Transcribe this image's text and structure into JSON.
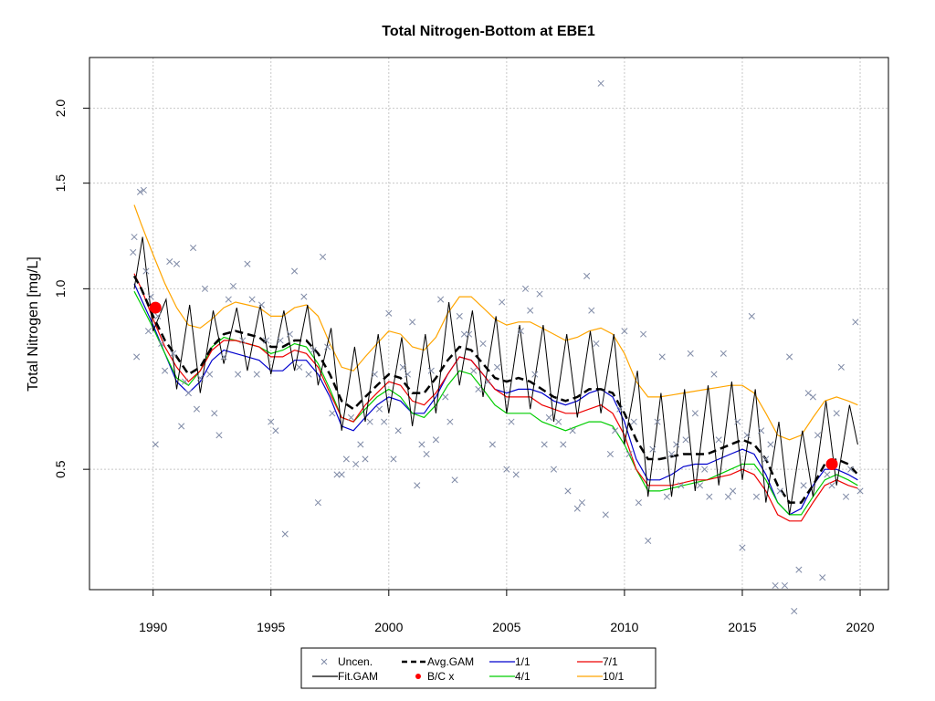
{
  "chart_data": {
    "type": "line",
    "title": "Total Nitrogen-Bottom at EBE1",
    "ylabel": "Total Nitrogen [mg/L]",
    "xlabel": "",
    "x_range": [
      1987.3,
      2021.2
    ],
    "y_range": [
      0.315,
      2.43
    ],
    "y_scale": "log",
    "x_ticks": [
      1990,
      1995,
      2000,
      2005,
      2010,
      2015,
      2020
    ],
    "y_ticks": [
      0.5,
      1.0,
      1.5,
      2.0
    ],
    "y_tick_labels": [
      "0.5",
      "1.0",
      "1.5",
      "2.0"
    ],
    "grid": true,
    "legend_position": "bottom",
    "legend": [
      {
        "label": "Uncen.",
        "kind": "cross",
        "color": "#7f8aa6"
      },
      {
        "label": "Fit.GAM",
        "kind": "line",
        "color": "#000000"
      },
      {
        "label": "Avg.GAM",
        "kind": "dashed",
        "color": "#000000"
      },
      {
        "label": "B/C x",
        "kind": "dot",
        "color": "#ff0000"
      },
      {
        "label": "1/1",
        "kind": "line",
        "color": "#0000cd"
      },
      {
        "label": "4/1",
        "kind": "line",
        "color": "#00cd00"
      },
      {
        "label": "7/1",
        "kind": "line",
        "color": "#ee0000"
      },
      {
        "label": "10/1",
        "kind": "line",
        "color": "#ffa500"
      }
    ],
    "series": [
      {
        "name": "Avg.GAM",
        "color": "#000000",
        "dash": true,
        "x": [
          1989.2,
          1989.5,
          1990.0,
          1990.5,
          1991.0,
          1991.5,
          1992.0,
          1992.5,
          1993.0,
          1993.5,
          1994.0,
          1994.5,
          1995.0,
          1995.5,
          1996.0,
          1996.5,
          1997.0,
          1997.5,
          1998.0,
          1998.5,
          1999.0,
          1999.5,
          2000.0,
          2000.5,
          2001.0,
          2001.5,
          2002.0,
          2002.5,
          2003.0,
          2003.5,
          2004.0,
          2004.5,
          2005.0,
          2005.5,
          2006.0,
          2006.5,
          2007.0,
          2007.5,
          2008.0,
          2008.5,
          2009.0,
          2009.5,
          2010.0,
          2010.5,
          2011.0,
          2011.5,
          2012.0,
          2012.5,
          2013.0,
          2013.5,
          2014.0,
          2014.5,
          2015.0,
          2015.5,
          2016.0,
          2016.5,
          2017.0,
          2017.5,
          2018.0,
          2018.5,
          2019.0,
          2019.5,
          2019.9
        ],
        "y": [
          1.05,
          1.0,
          0.9,
          0.82,
          0.77,
          0.72,
          0.74,
          0.8,
          0.84,
          0.85,
          0.84,
          0.83,
          0.8,
          0.8,
          0.82,
          0.82,
          0.78,
          0.72,
          0.65,
          0.63,
          0.66,
          0.69,
          0.72,
          0.71,
          0.67,
          0.67,
          0.71,
          0.76,
          0.8,
          0.79,
          0.75,
          0.71,
          0.7,
          0.71,
          0.7,
          0.68,
          0.66,
          0.65,
          0.66,
          0.68,
          0.68,
          0.67,
          0.62,
          0.56,
          0.52,
          0.52,
          0.525,
          0.53,
          0.53,
          0.53,
          0.54,
          0.55,
          0.56,
          0.55,
          0.52,
          0.47,
          0.44,
          0.44,
          0.47,
          0.51,
          0.52,
          0.51,
          0.49
        ]
      },
      {
        "name": "1/1",
        "color": "#0000cd",
        "dash": false,
        "x": [
          1989.2,
          1989.5,
          1990.0,
          1990.5,
          1991.0,
          1991.5,
          1992.0,
          1992.5,
          1993.0,
          1993.5,
          1994.0,
          1994.5,
          1995.0,
          1995.5,
          1996.0,
          1996.5,
          1997.0,
          1997.5,
          1998.0,
          1998.5,
          1999.0,
          1999.5,
          2000.0,
          2000.5,
          2001.0,
          2001.5,
          2002.0,
          2002.5,
          2003.0,
          2003.5,
          2004.0,
          2004.5,
          2005.0,
          2005.5,
          2006.0,
          2006.5,
          2007.0,
          2007.5,
          2008.0,
          2008.5,
          2009.0,
          2009.5,
          2010.0,
          2010.5,
          2011.0,
          2011.5,
          2012.0,
          2012.5,
          2013.0,
          2013.5,
          2014.0,
          2014.5,
          2015.0,
          2015.5,
          2016.0,
          2016.5,
          2017.0,
          2017.5,
          2018.0,
          2018.5,
          2019.0,
          2019.5,
          2019.9
        ],
        "y": [
          1.02,
          0.96,
          0.87,
          0.78,
          0.7,
          0.67,
          0.7,
          0.76,
          0.79,
          0.78,
          0.77,
          0.76,
          0.73,
          0.73,
          0.76,
          0.76,
          0.72,
          0.66,
          0.59,
          0.58,
          0.61,
          0.64,
          0.66,
          0.65,
          0.62,
          0.62,
          0.66,
          0.72,
          0.77,
          0.76,
          0.72,
          0.68,
          0.67,
          0.68,
          0.68,
          0.67,
          0.65,
          0.64,
          0.65,
          0.67,
          0.68,
          0.66,
          0.6,
          0.52,
          0.48,
          0.48,
          0.49,
          0.505,
          0.51,
          0.51,
          0.52,
          0.53,
          0.54,
          0.53,
          0.49,
          0.44,
          0.42,
          0.43,
          0.47,
          0.5,
          0.5,
          0.49,
          0.48
        ]
      },
      {
        "name": "4/1",
        "color": "#00cd00",
        "dash": false,
        "x": [
          1989.2,
          1989.5,
          1990.0,
          1990.5,
          1991.0,
          1991.5,
          1992.0,
          1992.5,
          1993.0,
          1993.5,
          1994.0,
          1994.5,
          1995.0,
          1995.5,
          1996.0,
          1996.5,
          1997.0,
          1997.5,
          1998.0,
          1998.5,
          1999.0,
          1999.5,
          2000.0,
          2000.5,
          2001.0,
          2001.5,
          2002.0,
          2002.5,
          2003.0,
          2003.5,
          2004.0,
          2004.5,
          2005.0,
          2005.5,
          2006.0,
          2006.5,
          2007.0,
          2007.5,
          2008.0,
          2008.5,
          2009.0,
          2009.5,
          2010.0,
          2010.5,
          2011.0,
          2011.5,
          2012.0,
          2012.5,
          2013.0,
          2013.5,
          2014.0,
          2014.5,
          2015.0,
          2015.5,
          2016.0,
          2016.5,
          2017.0,
          2017.5,
          2018.0,
          2018.5,
          2019.0,
          2019.5,
          2019.9
        ],
        "y": [
          0.99,
          0.94,
          0.86,
          0.78,
          0.71,
          0.69,
          0.73,
          0.8,
          0.83,
          0.82,
          0.81,
          0.8,
          0.78,
          0.79,
          0.81,
          0.8,
          0.75,
          0.68,
          0.61,
          0.6,
          0.63,
          0.66,
          0.68,
          0.66,
          0.62,
          0.61,
          0.64,
          0.69,
          0.73,
          0.72,
          0.68,
          0.64,
          0.62,
          0.62,
          0.62,
          0.6,
          0.59,
          0.58,
          0.59,
          0.6,
          0.6,
          0.59,
          0.55,
          0.5,
          0.46,
          0.46,
          0.465,
          0.47,
          0.475,
          0.48,
          0.49,
          0.5,
          0.51,
          0.51,
          0.48,
          0.44,
          0.42,
          0.42,
          0.45,
          0.48,
          0.49,
          0.48,
          0.47
        ]
      },
      {
        "name": "7/1",
        "color": "#ee0000",
        "dash": false,
        "x": [
          1989.2,
          1989.5,
          1990.0,
          1990.5,
          1991.0,
          1991.5,
          1992.0,
          1992.5,
          1993.0,
          1993.5,
          1994.0,
          1994.5,
          1995.0,
          1995.5,
          1996.0,
          1996.5,
          1997.0,
          1997.5,
          1998.0,
          1998.5,
          1999.0,
          1999.5,
          2000.0,
          2000.5,
          2001.0,
          2001.5,
          2002.0,
          2002.5,
          2003.0,
          2003.5,
          2004.0,
          2004.5,
          2005.0,
          2005.5,
          2006.0,
          2006.5,
          2007.0,
          2007.5,
          2008.0,
          2008.5,
          2009.0,
          2009.5,
          2010.0,
          2010.5,
          2011.0,
          2011.5,
          2012.0,
          2012.5,
          2013.0,
          2013.5,
          2014.0,
          2014.5,
          2015.0,
          2015.5,
          2016.0,
          2016.5,
          2017.0,
          2017.5,
          2018.0,
          2018.5,
          2019.0,
          2019.5,
          2019.9
        ],
        "y": [
          1.06,
          1.0,
          0.89,
          0.8,
          0.74,
          0.7,
          0.73,
          0.79,
          0.82,
          0.82,
          0.81,
          0.8,
          0.77,
          0.77,
          0.79,
          0.78,
          0.74,
          0.67,
          0.61,
          0.6,
          0.64,
          0.67,
          0.7,
          0.69,
          0.65,
          0.64,
          0.67,
          0.72,
          0.77,
          0.76,
          0.72,
          0.68,
          0.66,
          0.66,
          0.66,
          0.64,
          0.63,
          0.62,
          0.62,
          0.63,
          0.64,
          0.62,
          0.57,
          0.5,
          0.47,
          0.47,
          0.47,
          0.475,
          0.48,
          0.48,
          0.485,
          0.49,
          0.5,
          0.49,
          0.46,
          0.42,
          0.41,
          0.41,
          0.44,
          0.47,
          0.48,
          0.47,
          0.465
        ]
      },
      {
        "name": "10/1",
        "color": "#ffa500",
        "dash": false,
        "x": [
          1989.2,
          1989.5,
          1990.0,
          1990.5,
          1991.0,
          1991.5,
          1992.0,
          1992.5,
          1993.0,
          1993.5,
          1994.0,
          1994.5,
          1995.0,
          1995.5,
          1996.0,
          1996.5,
          1997.0,
          1997.5,
          1998.0,
          1998.5,
          1999.0,
          1999.5,
          2000.0,
          2000.5,
          2001.0,
          2001.5,
          2002.0,
          2002.5,
          2003.0,
          2003.5,
          2004.0,
          2004.5,
          2005.0,
          2005.5,
          2006.0,
          2006.5,
          2007.0,
          2007.5,
          2008.0,
          2008.5,
          2009.0,
          2009.5,
          2010.0,
          2010.5,
          2011.0,
          2011.5,
          2012.0,
          2012.5,
          2013.0,
          2013.5,
          2014.0,
          2014.5,
          2015.0,
          2015.5,
          2016.0,
          2016.5,
          2017.0,
          2017.5,
          2018.0,
          2018.5,
          2019.0,
          2019.5,
          2019.9
        ],
        "y": [
          1.38,
          1.28,
          1.14,
          1.02,
          0.93,
          0.87,
          0.86,
          0.89,
          0.93,
          0.95,
          0.94,
          0.93,
          0.9,
          0.9,
          0.93,
          0.94,
          0.9,
          0.81,
          0.74,
          0.73,
          0.77,
          0.81,
          0.85,
          0.84,
          0.8,
          0.79,
          0.83,
          0.91,
          0.97,
          0.97,
          0.93,
          0.89,
          0.87,
          0.88,
          0.88,
          0.86,
          0.84,
          0.82,
          0.83,
          0.85,
          0.86,
          0.84,
          0.78,
          0.7,
          0.66,
          0.66,
          0.665,
          0.67,
          0.675,
          0.68,
          0.685,
          0.69,
          0.69,
          0.67,
          0.62,
          0.57,
          0.56,
          0.57,
          0.61,
          0.65,
          0.66,
          0.65,
          0.64
        ]
      }
    ],
    "fit_gam": {
      "name": "Fit.GAM",
      "color": "#000000",
      "x": [
        1989.2,
        1989.55,
        1990.0,
        1990.55,
        1991.0,
        1991.55,
        1992.0,
        1992.55,
        1993.0,
        1993.55,
        1994.0,
        1994.55,
        1995.0,
        1995.55,
        1996.0,
        1996.55,
        1997.0,
        1997.55,
        1998.0,
        1998.55,
        1999.0,
        1999.55,
        2000.0,
        2000.55,
        2001.0,
        2001.55,
        2002.0,
        2002.55,
        2003.0,
        2003.55,
        2004.0,
        2004.55,
        2005.0,
        2005.55,
        2006.0,
        2006.55,
        2007.0,
        2007.55,
        2008.0,
        2008.55,
        2009.0,
        2009.55,
        2010.0,
        2010.55,
        2011.0,
        2011.55,
        2012.0,
        2012.55,
        2013.0,
        2013.55,
        2014.0,
        2014.55,
        2015.0,
        2015.55,
        2016.0,
        2016.55,
        2017.0,
        2017.55,
        2018.0,
        2018.55,
        2019.0,
        2019.55,
        2019.9
      ],
      "y": [
        1.0,
        1.22,
        0.85,
        0.96,
        0.68,
        0.94,
        0.67,
        0.92,
        0.75,
        0.93,
        0.73,
        0.94,
        0.72,
        0.92,
        0.73,
        0.94,
        0.69,
        0.86,
        0.58,
        0.8,
        0.6,
        0.84,
        0.62,
        0.83,
        0.59,
        0.84,
        0.62,
        0.95,
        0.69,
        0.92,
        0.66,
        0.9,
        0.62,
        0.87,
        0.63,
        0.87,
        0.6,
        0.84,
        0.61,
        0.85,
        0.62,
        0.84,
        0.55,
        0.73,
        0.45,
        0.67,
        0.45,
        0.68,
        0.46,
        0.69,
        0.47,
        0.7,
        0.48,
        0.68,
        0.44,
        0.6,
        0.42,
        0.58,
        0.45,
        0.65,
        0.47,
        0.64,
        0.55
      ]
    },
    "uncensored_points": {
      "x": [
        1989.15,
        1989.2,
        1989.3,
        1989.45,
        1989.6,
        1989.7,
        1989.8,
        1989.9,
        1990.1,
        1990.2,
        1990.35,
        1990.5,
        1990.7,
        1990.85,
        1991.0,
        1991.2,
        1991.35,
        1991.5,
        1991.7,
        1991.85,
        1992.0,
        1992.2,
        1992.4,
        1992.6,
        1992.8,
        1993.0,
        1993.2,
        1993.4,
        1993.6,
        1993.8,
        1994.0,
        1994.2,
        1994.4,
        1994.6,
        1994.8,
        1995.0,
        1995.2,
        1995.4,
        1995.6,
        1995.8,
        1996.0,
        1996.2,
        1996.4,
        1996.6,
        1996.8,
        1997.0,
        1997.2,
        1997.4,
        1997.6,
        1997.8,
        1998.0,
        1998.2,
        1998.4,
        1998.6,
        1998.8,
        1999.0,
        1999.2,
        1999.4,
        1999.6,
        1999.8,
        2000.0,
        2000.2,
        2000.4,
        2000.6,
        2000.8,
        2001.0,
        2001.2,
        2001.4,
        2001.6,
        2001.8,
        2002.0,
        2002.2,
        2002.4,
        2002.6,
        2002.8,
        2003.0,
        2003.2,
        2003.4,
        2003.6,
        2003.8,
        2004.0,
        2004.2,
        2004.4,
        2004.6,
        2004.8,
        2005.0,
        2005.2,
        2005.4,
        2005.6,
        2005.8,
        2006.0,
        2006.2,
        2006.4,
        2006.6,
        2006.8,
        2007.0,
        2007.2,
        2007.4,
        2007.6,
        2007.8,
        2008.0,
        2008.2,
        2008.4,
        2008.6,
        2008.8,
        2009.0,
        2009.2,
        2009.4,
        2009.6,
        2009.8,
        2010.0,
        2010.2,
        2010.4,
        2010.6,
        2010.8,
        2011.0,
        2011.2,
        2011.4,
        2011.6,
        2011.8,
        2012.0,
        2012.2,
        2012.4,
        2012.6,
        2012.8,
        2013.0,
        2013.2,
        2013.4,
        2013.6,
        2013.8,
        2014.0,
        2014.2,
        2014.4,
        2014.6,
        2014.8,
        2015.0,
        2015.2,
        2015.4,
        2015.6,
        2015.8,
        2016.0,
        2016.2,
        2016.4,
        2016.6,
        2016.8,
        2017.0,
        2017.2,
        2017.4,
        2017.6,
        2017.8,
        2018.0,
        2018.2,
        2018.4,
        2018.6,
        2018.8,
        2019.0,
        2019.2,
        2019.4,
        2019.6,
        2019.8,
        2020.0
      ],
      "y": [
        1.15,
        1.22,
        0.77,
        1.45,
        1.46,
        1.07,
        0.85,
        0.97,
        0.55,
        0.9,
        0.81,
        0.73,
        1.11,
        0.78,
        1.1,
        0.59,
        0.7,
        0.67,
        1.17,
        0.63,
        0.71,
        1.0,
        0.72,
        0.62,
        0.57,
        0.77,
        0.96,
        1.01,
        0.72,
        0.82,
        1.1,
        0.96,
        0.72,
        0.94,
        0.82,
        0.6,
        0.58,
        0.82,
        0.39,
        0.84,
        1.07,
        0.74,
        0.97,
        0.72,
        0.79,
        0.44,
        1.13,
        0.8,
        0.62,
        0.49,
        0.49,
        0.52,
        0.61,
        0.51,
        0.55,
        0.52,
        0.6,
        0.72,
        0.63,
        0.6,
        0.91,
        0.52,
        0.58,
        0.74,
        0.72,
        0.88,
        0.47,
        0.55,
        0.53,
        0.73,
        0.56,
        0.96,
        0.66,
        0.6,
        0.48,
        0.9,
        0.84,
        0.84,
        0.73,
        0.68,
        0.81,
        0.7,
        0.55,
        0.74,
        0.95,
        0.5,
        0.6,
        0.49,
        0.85,
        1.0,
        0.92,
        0.72,
        0.98,
        0.55,
        0.61,
        0.5,
        0.6,
        0.55,
        0.46,
        0.58,
        0.43,
        0.44,
        1.05,
        0.92,
        0.81,
        2.2,
        0.42,
        0.53,
        0.58,
        0.63,
        0.85,
        0.53,
        0.6,
        0.44,
        0.84,
        0.38,
        0.54,
        0.6,
        0.77,
        0.45,
        0.53,
        0.55,
        0.47,
        0.56,
        0.78,
        0.62,
        0.47,
        0.5,
        0.45,
        0.72,
        0.56,
        0.78,
        0.45,
        0.46,
        0.6,
        0.37,
        0.57,
        0.9,
        0.45,
        0.58,
        0.52,
        0.55,
        0.32,
        0.46,
        0.32,
        0.77,
        0.29,
        0.34,
        0.47,
        0.67,
        0.66,
        0.57,
        0.33,
        0.49,
        0.47,
        0.62,
        0.74,
        0.45,
        0.5,
        0.88,
        0.46
      ]
    },
    "bc_points": {
      "x": [
        1990.1,
        2018.8
      ],
      "y": [
        0.93,
        0.51
      ]
    }
  }
}
